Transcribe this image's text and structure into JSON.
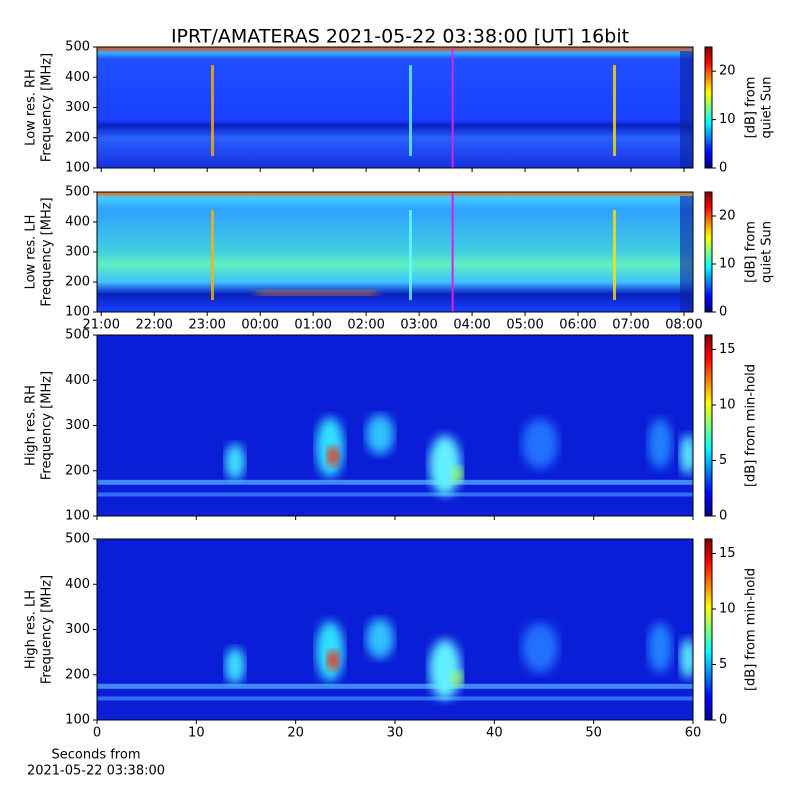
{
  "title": "IPRT/AMATERAS 2021-05-22 03:38:00 [UT]   16bit",
  "chart_data": [
    {
      "type": "heatmap",
      "ylabel": [
        "Low res. RH",
        "Frequency [MHz]"
      ],
      "xlim": [
        20.92,
        32.17
      ],
      "xticks": [
        21,
        22,
        23,
        24,
        25,
        26,
        27,
        28,
        29,
        30,
        31,
        32
      ],
      "ylim": [
        100,
        500
      ],
      "yticks": [
        100,
        200,
        300,
        400,
        500
      ],
      "vline": {
        "x": 27.633,
        "color": "#e020e0"
      },
      "colorbar": {
        "label": [
          "[dB] from",
          "quiet Sun"
        ],
        "lim": [
          0,
          25
        ],
        "ticks": [
          0,
          10,
          20
        ]
      }
    },
    {
      "type": "heatmap",
      "ylabel": [
        "Low res. LH",
        "Frequency [MHz]"
      ],
      "xlim": [
        20.92,
        32.17
      ],
      "xticks": [
        {
          "value": 21,
          "label": "21:00"
        },
        {
          "value": 22,
          "label": "22:00"
        },
        {
          "value": 23,
          "label": "23:00"
        },
        {
          "value": 24,
          "label": "00:00"
        },
        {
          "value": 25,
          "label": "01:00"
        },
        {
          "value": 26,
          "label": "02:00"
        },
        {
          "value": 27,
          "label": "03:00"
        },
        {
          "value": 28,
          "label": "04:00"
        },
        {
          "value": 29,
          "label": "05:00"
        },
        {
          "value": 30,
          "label": "06:00"
        },
        {
          "value": 31,
          "label": "07:00"
        },
        {
          "value": 32,
          "label": "08:00"
        }
      ],
      "ylim": [
        100,
        500
      ],
      "yticks": [
        100,
        200,
        300,
        400,
        500
      ],
      "vline": {
        "x": 27.633,
        "color": "#e020e0"
      },
      "colorbar": {
        "label": [
          "[dB] from",
          "quiet Sun"
        ],
        "lim": [
          0,
          25
        ],
        "ticks": [
          0,
          10,
          20
        ]
      }
    },
    {
      "type": "heatmap",
      "ylabel": [
        "High res. RH",
        "Frequency [MHz]"
      ],
      "xlim": [
        0,
        60
      ],
      "xticks": [
        0,
        10,
        20,
        30,
        40,
        50,
        60
      ],
      "ylim": [
        100,
        500
      ],
      "yticks": [
        100,
        200,
        300,
        400,
        500
      ],
      "colorbar": {
        "label": [
          "[dB] from min-hold"
        ],
        "lim": [
          0,
          16.3
        ],
        "ticks": [
          0,
          5,
          10,
          15
        ]
      }
    },
    {
      "type": "heatmap",
      "ylabel": [
        "High res. LH",
        "Frequency [MHz]"
      ],
      "xlabel": [
        "Seconds from",
        "2021-05-22 03:38:00"
      ],
      "xlim": [
        0,
        60
      ],
      "xticks": [
        0,
        10,
        20,
        30,
        40,
        50,
        60
      ],
      "ylim": [
        100,
        500
      ],
      "yticks": [
        100,
        200,
        300,
        400,
        500
      ],
      "colorbar": {
        "label": [
          "[dB] from min-hold"
        ],
        "lim": [
          0,
          16.3
        ],
        "ticks": [
          0,
          5,
          10,
          15
        ]
      }
    }
  ]
}
